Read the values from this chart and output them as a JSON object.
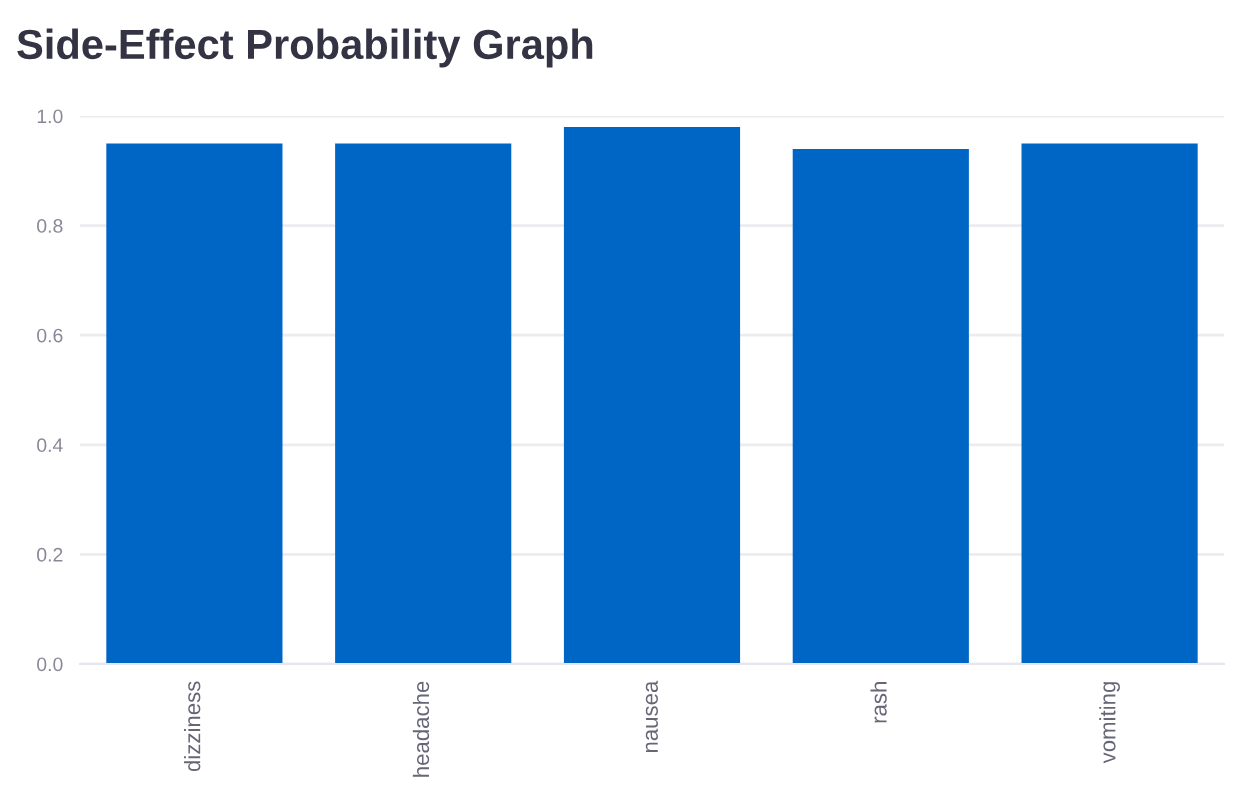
{
  "chart_data": {
    "type": "bar",
    "title": "Side-Effect Probability Graph",
    "categories": [
      "dizziness",
      "headache",
      "nausea",
      "rash",
      "vomiting"
    ],
    "values": [
      0.95,
      0.95,
      0.98,
      0.94,
      0.95
    ],
    "color": "#0066c6",
    "ylim": [
      0,
      1.0
    ],
    "yticks": [
      {
        "value": 0,
        "label": "0.0"
      },
      {
        "value": 0.2,
        "label": "0.2"
      },
      {
        "value": 0.4,
        "label": "0.4"
      },
      {
        "value": 0.6,
        "label": "0.6"
      },
      {
        "value": 0.8,
        "label": "0.8"
      },
      {
        "value": 1.0,
        "label": "1.0"
      }
    ],
    "grid": "y"
  }
}
